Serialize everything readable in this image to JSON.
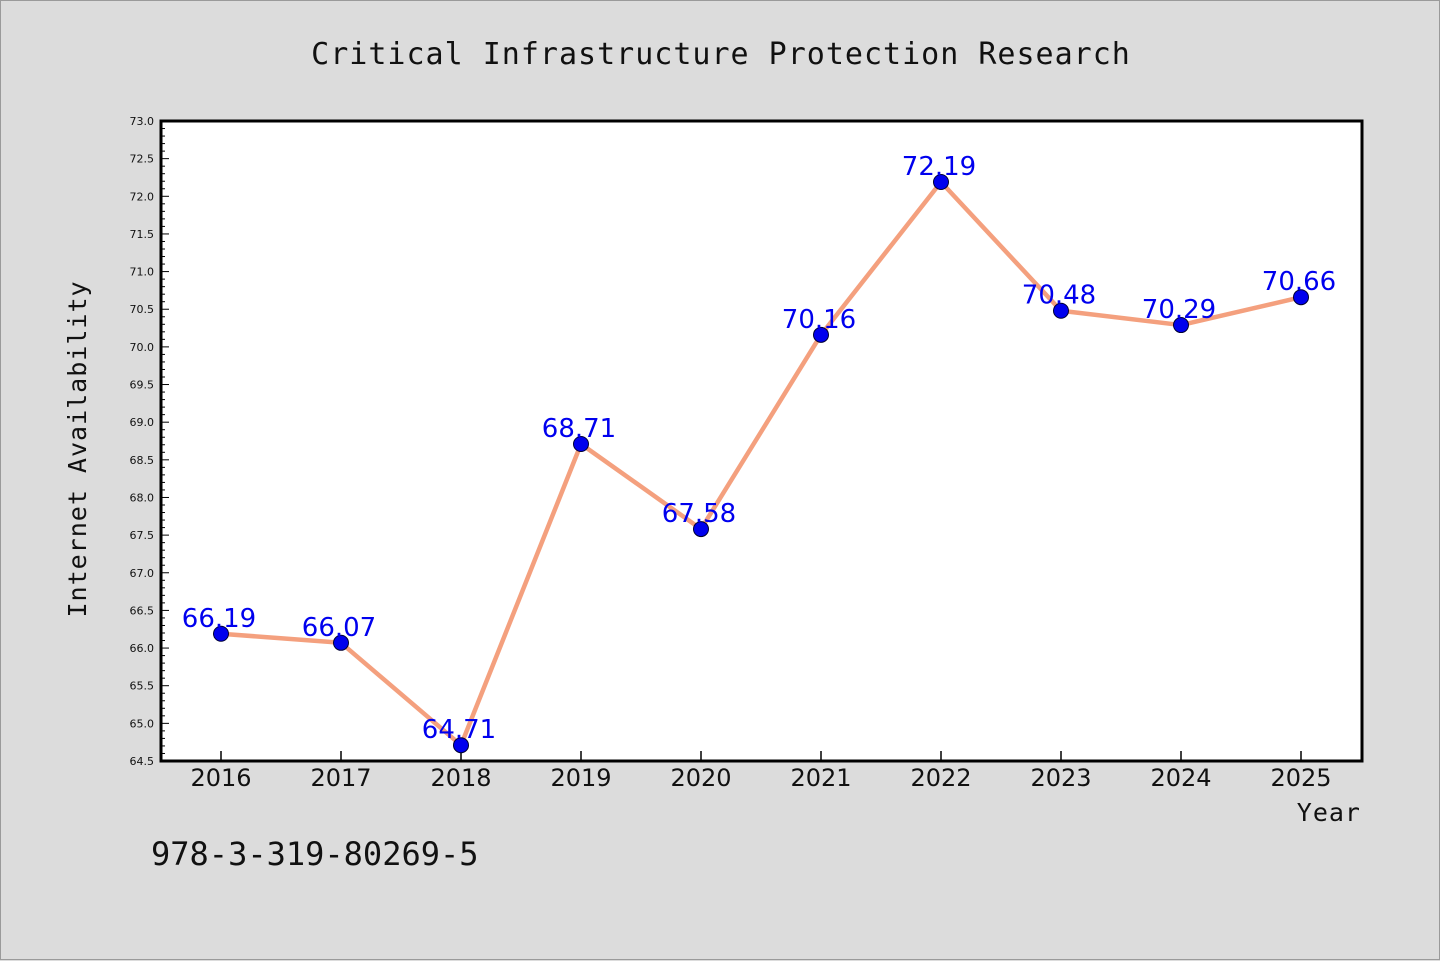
{
  "footnote": "978-3-319-80269-5",
  "chart_data": {
    "type": "line",
    "title": "Critical Infrastructure Protection Research",
    "xlabel": "Year",
    "ylabel": "Internet Availability",
    "categories": [
      "2016",
      "2017",
      "2018",
      "2019",
      "2020",
      "2021",
      "2022",
      "2023",
      "2024",
      "2025"
    ],
    "series": [
      {
        "values": [
          66.19,
          66.07,
          64.71,
          68.71,
          67.58,
          70.16,
          72.19,
          70.48,
          70.29,
          70.66
        ]
      }
    ],
    "data_labels": [
      "66.19",
      "66.07",
      "64.71",
      "68.71",
      "67.58",
      "70.16",
      "72.19",
      "70.48",
      "70.29",
      "70.66"
    ],
    "ylim": [
      64.5,
      73.0
    ],
    "yticks": [
      "64.5",
      "65.0",
      "65.5",
      "66.0",
      "66.5",
      "67.0",
      "67.5",
      "68.0",
      "68.5",
      "69.0",
      "69.5",
      "70.0",
      "70.5",
      "71.0",
      "71.5",
      "72.0",
      "72.5",
      "73.0"
    ],
    "grid": false,
    "legend": "none",
    "colors": {
      "line": "#f4a07e",
      "marker": "#0000ee",
      "marker_edge": "#000033",
      "data_label": "#0000ee",
      "background": "#dcdcdc",
      "plot_area": "#ffffff"
    }
  }
}
